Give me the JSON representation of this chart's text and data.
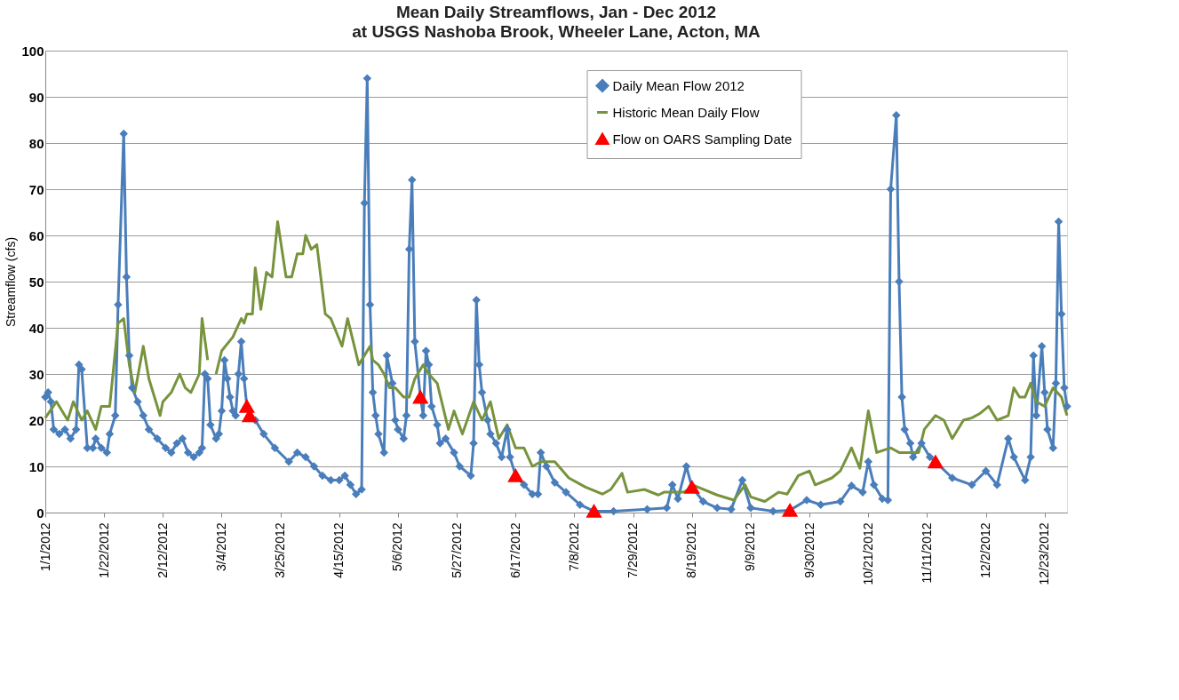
{
  "chart_data": {
    "type": "line",
    "title": "Mean Daily Streamflows, Jan - Dec 2012",
    "subtitle": "at USGS Nashoba Brook, Wheeler Lane, Acton, MA",
    "ylabel": "Streamflow (cfs)",
    "xlim": [
      "2012-01-01",
      "2012-12-31"
    ],
    "xticks": [
      {
        "value": "2012-01-01",
        "label": "1/1/2012"
      },
      {
        "value": "2012-01-22",
        "label": "1/22/2012"
      },
      {
        "value": "2012-02-12",
        "label": "2/12/2012"
      },
      {
        "value": "2012-03-04",
        "label": "3/4/2012"
      },
      {
        "value": "2012-03-25",
        "label": "3/25/2012"
      },
      {
        "value": "2012-04-15",
        "label": "4/15/2012"
      },
      {
        "value": "2012-05-06",
        "label": "5/6/2012"
      },
      {
        "value": "2012-05-27",
        "label": "5/27/2012"
      },
      {
        "value": "2012-06-17",
        "label": "6/17/2012"
      },
      {
        "value": "2012-07-08",
        "label": "7/8/2012"
      },
      {
        "value": "2012-07-29",
        "label": "7/29/2012"
      },
      {
        "value": "2012-08-19",
        "label": "8/19/2012"
      },
      {
        "value": "2012-09-09",
        "label": "9/9/2012"
      },
      {
        "value": "2012-09-30",
        "label": "9/30/2012"
      },
      {
        "value": "2012-10-21",
        "label": "10/21/2012"
      },
      {
        "value": "2012-11-11",
        "label": "11/11/2012"
      },
      {
        "value": "2012-12-02",
        "label": "12/2/2012"
      },
      {
        "value": "2012-12-23",
        "label": "12/23/2012"
      }
    ],
    "ylim": [
      0,
      100
    ],
    "yticks": [
      0,
      10,
      20,
      30,
      40,
      50,
      60,
      70,
      80,
      90,
      100
    ],
    "grid": "y",
    "legend": "top right",
    "series": [
      {
        "name": "Daily Mean Flow 2012",
        "color": "#4a7ebb",
        "marker": "diamond",
        "x": [
          "2012-01-01",
          "2012-01-02",
          "2012-01-03",
          "2012-01-04",
          "2012-01-06",
          "2012-01-08",
          "2012-01-10",
          "2012-01-12",
          "2012-01-13",
          "2012-01-14",
          "2012-01-16",
          "2012-01-18",
          "2012-01-19",
          "2012-01-21",
          "2012-01-23",
          "2012-01-24",
          "2012-01-26",
          "2012-01-27",
          "2012-01-29",
          "2012-01-30",
          "2012-01-31",
          "2012-02-01",
          "2012-02-03",
          "2012-02-05",
          "2012-02-07",
          "2012-02-10",
          "2012-02-13",
          "2012-02-15",
          "2012-02-17",
          "2012-02-19",
          "2012-02-21",
          "2012-02-23",
          "2012-02-25",
          "2012-02-26",
          "2012-02-27",
          "2012-02-28",
          "2012-02-29",
          "2012-03-02",
          "2012-03-03",
          "2012-03-04",
          "2012-03-05",
          "2012-03-06",
          "2012-03-07",
          "2012-03-08",
          "2012-03-09",
          "2012-03-10",
          "2012-03-11",
          "2012-03-12",
          "2012-03-13",
          "2012-03-14",
          "2012-03-16",
          "2012-03-19",
          "2012-03-23",
          "2012-03-28",
          "2012-03-31",
          "2012-04-03",
          "2012-04-06",
          "2012-04-09",
          "2012-04-12",
          "2012-04-15",
          "2012-04-17",
          "2012-04-19",
          "2012-04-21",
          "2012-04-23",
          "2012-04-24",
          "2012-04-25",
          "2012-04-26",
          "2012-04-27",
          "2012-04-28",
          "2012-04-29",
          "2012-05-01",
          "2012-05-02",
          "2012-05-04",
          "2012-05-05",
          "2012-05-06",
          "2012-05-08",
          "2012-05-09",
          "2012-05-10",
          "2012-05-11",
          "2012-05-12",
          "2012-05-14",
          "2012-05-15",
          "2012-05-16",
          "2012-05-17",
          "2012-05-18",
          "2012-05-20",
          "2012-05-21",
          "2012-05-23",
          "2012-05-26",
          "2012-05-28",
          "2012-06-01",
          "2012-06-02",
          "2012-06-03",
          "2012-06-04",
          "2012-06-05",
          "2012-06-07",
          "2012-06-08",
          "2012-06-10",
          "2012-06-12",
          "2012-06-14",
          "2012-06-15",
          "2012-06-17",
          "2012-06-20",
          "2012-06-23",
          "2012-06-25",
          "2012-06-26",
          "2012-06-28",
          "2012-07-01",
          "2012-07-05",
          "2012-07-10",
          "2012-07-15",
          "2012-07-22",
          "2012-08-03",
          "2012-08-10",
          "2012-08-12",
          "2012-08-14",
          "2012-08-17",
          "2012-08-19",
          "2012-08-23",
          "2012-08-28",
          "2012-09-02",
          "2012-09-06",
          "2012-09-09",
          "2012-09-17",
          "2012-09-23",
          "2012-09-29",
          "2012-10-04",
          "2012-10-11",
          "2012-10-15",
          "2012-10-19",
          "2012-10-21",
          "2012-10-23",
          "2012-10-26",
          "2012-10-28",
          "2012-10-29",
          "2012-10-31",
          "2012-11-01",
          "2012-11-02",
          "2012-11-03",
          "2012-11-05",
          "2012-11-06",
          "2012-11-09",
          "2012-11-12",
          "2012-11-14",
          "2012-11-20",
          "2012-11-27",
          "2012-12-02",
          "2012-12-06",
          "2012-12-10",
          "2012-12-12",
          "2012-12-16",
          "2012-12-18",
          "2012-12-19",
          "2012-12-20",
          "2012-12-22",
          "2012-12-23",
          "2012-12-24",
          "2012-12-26",
          "2012-12-27",
          "2012-12-28",
          "2012-12-29",
          "2012-12-30",
          "2012-12-31"
        ],
        "values": [
          25,
          26,
          24,
          18,
          17,
          18,
          16,
          18,
          32,
          31,
          14,
          14,
          16,
          14,
          13,
          17,
          21,
          45,
          82,
          51,
          34,
          27,
          24,
          21,
          18,
          16,
          14,
          13,
          15,
          16,
          13,
          12,
          13,
          14,
          30,
          29,
          19,
          16,
          17,
          22,
          33,
          29,
          25,
          22,
          21,
          30,
          37,
          29,
          23,
          21,
          20,
          17,
          14,
          11,
          13,
          12,
          10,
          8,
          7,
          7,
          8,
          6,
          4,
          5,
          67,
          94,
          45,
          26,
          21,
          17,
          13,
          34,
          28,
          20,
          18,
          16,
          21,
          57,
          72,
          37,
          25,
          21,
          35,
          32,
          23,
          19,
          15,
          16,
          13,
          10,
          8,
          15,
          46,
          32,
          26,
          20,
          17,
          15,
          12,
          18,
          12,
          8,
          6,
          4,
          4,
          13,
          10,
          6.5,
          4.4,
          1.7,
          0.3,
          0.3,
          0.7,
          1,
          6,
          3,
          10,
          5.5,
          2.4,
          1,
          0.7,
          7,
          1,
          0.3,
          0.5,
          2.7,
          1.7,
          2.4,
          5.8,
          4.4,
          11,
          6,
          3,
          2.7,
          70,
          86,
          50,
          25,
          18,
          15,
          12,
          15,
          12,
          11,
          7.5,
          6,
          9,
          6,
          16,
          12,
          7,
          12,
          34,
          21,
          36,
          26,
          18,
          14,
          28,
          63,
          43,
          27,
          23
        ]
      },
      {
        "name": "Historic Mean Daily Flow",
        "color": "#77933c",
        "marker": "none",
        "x": [
          "2012-01-01",
          "2012-01-05",
          "2012-01-09",
          "2012-01-11",
          "2012-01-14",
          "2012-01-16",
          "2012-01-19",
          "2012-01-21",
          "2012-01-24",
          "2012-01-27",
          "2012-01-29",
          "2012-01-31",
          "2012-02-02",
          "2012-02-05",
          "2012-02-07",
          "2012-02-11",
          "2012-02-12",
          "2012-02-15",
          "2012-02-18",
          "2012-02-20",
          "2012-02-22",
          "2012-02-25",
          "2012-02-26",
          "2012-02-28",
          "2012-03-01",
          "2012-03-02",
          "2012-03-04",
          "2012-03-08",
          "2012-03-11",
          "2012-03-12",
          "2012-03-13",
          "2012-03-15",
          "2012-03-16",
          "2012-03-18",
          "2012-03-20",
          "2012-03-22",
          "2012-03-24",
          "2012-03-27",
          "2012-03-29",
          "2012-03-31",
          "2012-04-02",
          "2012-04-03",
          "2012-04-05",
          "2012-04-07",
          "2012-04-10",
          "2012-04-12",
          "2012-04-14",
          "2012-04-16",
          "2012-04-18",
          "2012-04-20",
          "2012-04-22",
          "2012-04-26",
          "2012-04-27",
          "2012-04-29",
          "2012-05-01",
          "2012-05-03",
          "2012-05-05",
          "2012-05-08",
          "2012-05-10",
          "2012-05-12",
          "2012-05-15",
          "2012-05-17",
          "2012-05-20",
          "2012-05-24",
          "2012-05-26",
          "2012-05-29",
          "2012-06-02",
          "2012-06-05",
          "2012-06-08",
          "2012-06-11",
          "2012-06-14",
          "2012-06-17",
          "2012-06-20",
          "2012-06-23",
          "2012-06-26",
          "2012-07-01",
          "2012-07-06",
          "2012-07-12",
          "2012-07-18",
          "2012-07-21",
          "2012-07-25",
          "2012-07-27",
          "2012-08-02",
          "2012-08-07",
          "2012-08-09",
          "2012-08-16",
          "2012-08-20",
          "2012-08-28",
          "2012-09-03",
          "2012-09-07",
          "2012-09-09",
          "2012-09-14",
          "2012-09-19",
          "2012-09-22",
          "2012-09-26",
          "2012-09-30",
          "2012-10-02",
          "2012-10-08",
          "2012-10-11",
          "2012-10-15",
          "2012-10-18",
          "2012-10-21",
          "2012-10-24",
          "2012-10-29",
          "2012-11-01",
          "2012-11-08",
          "2012-11-10",
          "2012-11-14",
          "2012-11-17",
          "2012-11-20",
          "2012-11-24",
          "2012-11-27",
          "2012-11-30",
          "2012-12-03",
          "2012-12-06",
          "2012-12-10",
          "2012-12-12",
          "2012-12-14",
          "2012-12-16",
          "2012-12-18",
          "2012-12-20",
          "2012-12-23",
          "2012-12-26",
          "2012-12-29",
          "2012-12-31"
        ],
        "values": [
          20.5,
          24,
          20,
          24,
          20,
          22,
          18,
          23,
          23,
          41,
          42,
          32,
          26,
          36,
          29,
          21,
          24,
          26,
          30,
          27,
          26,
          30,
          42,
          33,
          null,
          30,
          35,
          38,
          42,
          41,
          43,
          43,
          53,
          44,
          52,
          51,
          63,
          51,
          51,
          56,
          56,
          60,
          57,
          58,
          43,
          42,
          39,
          36,
          42,
          37,
          32,
          36,
          33,
          32,
          30,
          27,
          27,
          25,
          25,
          29,
          32,
          30,
          28,
          18,
          22,
          17,
          24,
          20,
          24,
          16,
          19,
          14,
          14,
          10,
          11,
          11,
          7.5,
          5.5,
          4,
          5,
          8.5,
          4.4,
          5,
          3.8,
          4.4,
          4.4,
          5.8,
          3.8,
          2.7,
          6,
          3.4,
          2.4,
          4.4,
          4,
          8,
          9,
          6,
          7.5,
          9,
          14,
          9.6,
          22,
          13,
          14,
          13,
          13,
          18,
          21,
          20,
          16,
          20,
          20.5,
          21.5,
          23,
          20,
          21,
          27,
          25,
          25,
          28,
          24,
          23,
          27,
          25,
          21
        ]
      },
      {
        "name": "Flow on OARS Sampling Date",
        "color": "#ff0000",
        "type": "scatter",
        "marker": "triangle",
        "x": [
          "2012-03-13",
          "2012-03-14",
          "2012-05-14",
          "2012-06-17",
          "2012-07-15",
          "2012-08-19",
          "2012-09-23",
          "2012-11-14"
        ],
        "values": [
          23,
          21,
          25,
          8,
          0.3,
          5.5,
          0.5,
          11
        ]
      }
    ]
  }
}
